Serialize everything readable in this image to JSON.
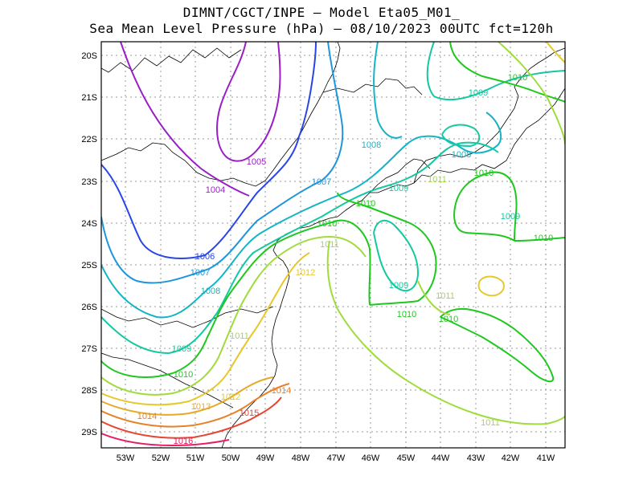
{
  "title_line1": "DIMNT/CGCT/INPE –   Model Eta05_M01_",
  "title_line2": "Sea Mean Level Pressure (hPa) – 08/10/2023 00UTC fct=120h",
  "lat_ticks": [
    "20S",
    "21S",
    "22S",
    "23S",
    "24S",
    "25S",
    "26S",
    "27S",
    "28S",
    "29S"
  ],
  "lon_ticks": [
    "53W",
    "52W",
    "51W",
    "50W",
    "49W",
    "48W",
    "47W",
    "46W",
    "45W",
    "44W",
    "43W",
    "42W",
    "41W"
  ],
  "contour_labels": [
    {
      "text": "1004",
      "color": "#9a1ec8"
    },
    {
      "text": "1005",
      "color": "#9a1ec8"
    },
    {
      "text": "1006",
      "color": "#2846e6"
    },
    {
      "text": "1007",
      "color": "#1e96dc"
    },
    {
      "text": "1007",
      "color": "#1e96dc"
    },
    {
      "text": "1008",
      "color": "#14b4c8"
    },
    {
      "text": "1008",
      "color": "#14b4c8"
    },
    {
      "text": "1008",
      "color": "#14b4c8"
    },
    {
      "text": "1009",
      "color": "#14c8a0"
    },
    {
      "text": "1009",
      "color": "#14c8a0"
    },
    {
      "text": "1009",
      "color": "#14c8a0"
    },
    {
      "text": "1009",
      "color": "#14c8a0"
    },
    {
      "text": "1009",
      "color": "#14c8a0"
    },
    {
      "text": "1010",
      "color": "#1ec81e"
    },
    {
      "text": "1010",
      "color": "#1ec81e"
    },
    {
      "text": "1010",
      "color": "#1ec81e"
    },
    {
      "text": "1010",
      "color": "#1ec81e"
    },
    {
      "text": "1010",
      "color": "#1ec81e"
    },
    {
      "text": "1010",
      "color": "#1ec81e"
    },
    {
      "text": "1010",
      "color": "#1ec81e"
    },
    {
      "text": "1010",
      "color": "#1ec81e"
    },
    {
      "text": "1011",
      "color": "#a0dc3c"
    },
    {
      "text": "1011",
      "color": "#a0dc3c"
    },
    {
      "text": "1011",
      "color": "#a0dc3c"
    },
    {
      "text": "1011",
      "color": "#a0dc3c"
    },
    {
      "text": "1011",
      "color": "#a0dc3c"
    },
    {
      "text": "1012",
      "color": "#e6c828"
    },
    {
      "text": "1012",
      "color": "#e6c828"
    },
    {
      "text": "1013",
      "color": "#e6aa28"
    },
    {
      "text": "1014",
      "color": "#e68228"
    },
    {
      "text": "1014",
      "color": "#e68228"
    },
    {
      "text": "1015",
      "color": "#e64632"
    },
    {
      "text": "1016",
      "color": "#e61e64"
    }
  ]
}
